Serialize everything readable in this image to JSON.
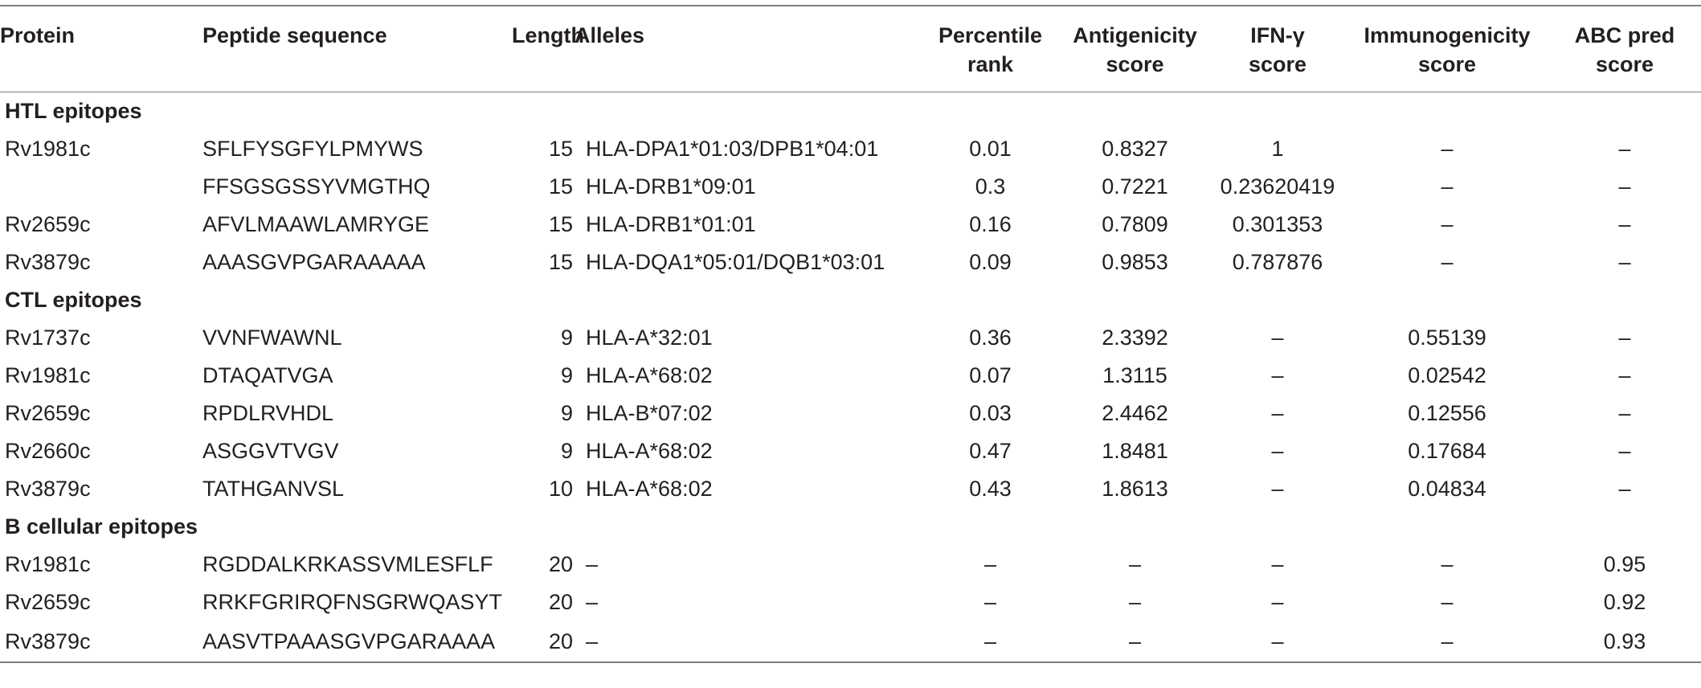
{
  "table": {
    "headers": {
      "protein": "Protein",
      "peptide": "Peptide sequence",
      "length": "Length",
      "alleles": "Alleles",
      "percentile_line1": "Percentile",
      "percentile_line2": "rank",
      "antigenicity_line1": "Antigenicity",
      "antigenicity_line2": "score",
      "ifn_line1": "IFN-γ",
      "ifn_line2": "score",
      "immunogenicity_line1": "Immunogenicity",
      "immunogenicity_line2": "score",
      "abc_line1": "ABC pred",
      "abc_line2": "score"
    },
    "sections": [
      {
        "title": "HTL epitopes",
        "rows": [
          {
            "protein": "Rv1981c",
            "peptide": "SFLFYSGFYLPMYWS",
            "length": "15",
            "alleles": "HLA-DPA1*01:03/DPB1*04:01",
            "percentile": "0.01",
            "antigenicity": "0.8327",
            "ifn": "1",
            "immunogenicity": "–",
            "abc": "–"
          },
          {
            "protein": "",
            "peptide": "FFSGSGSSYVMGTHQ",
            "length": "15",
            "alleles": "HLA-DRB1*09:01",
            "percentile": "0.3",
            "antigenicity": "0.7221",
            "ifn": "0.23620419",
            "immunogenicity": "–",
            "abc": "–"
          },
          {
            "protein": "Rv2659c",
            "peptide": "AFVLMAAWLAMRYGE",
            "length": "15",
            "alleles": "HLA-DRB1*01:01",
            "percentile": "0.16",
            "antigenicity": "0.7809",
            "ifn": "0.301353",
            "immunogenicity": "–",
            "abc": "–"
          },
          {
            "protein": "Rv3879c",
            "peptide": "AAASGVPGARAAAAA",
            "length": "15",
            "alleles": "HLA-DQA1*05:01/DQB1*03:01",
            "percentile": "0.09",
            "antigenicity": "0.9853",
            "ifn": "0.787876",
            "immunogenicity": "–",
            "abc": "–"
          }
        ]
      },
      {
        "title": "CTL epitopes",
        "rows": [
          {
            "protein": "Rv1737c",
            "peptide": "VVNFWAWNL",
            "length": "9",
            "alleles": "HLA-A*32:01",
            "percentile": "0.36",
            "antigenicity": "2.3392",
            "ifn": "–",
            "immunogenicity": "0.55139",
            "abc": "–"
          },
          {
            "protein": "Rv1981c",
            "peptide": "DTAQATVGA",
            "length": "9",
            "alleles": "HLA-A*68:02",
            "percentile": "0.07",
            "antigenicity": "1.3115",
            "ifn": "–",
            "immunogenicity": "0.02542",
            "abc": "–"
          },
          {
            "protein": "Rv2659c",
            "peptide": "RPDLRVHDL",
            "length": "9",
            "alleles": "HLA-B*07:02",
            "percentile": "0.03",
            "antigenicity": "2.4462",
            "ifn": "–",
            "immunogenicity": "0.12556",
            "abc": "–"
          },
          {
            "protein": "Rv2660c",
            "peptide": "ASGGVTVGV",
            "length": "9",
            "alleles": "HLA-A*68:02",
            "percentile": "0.47",
            "antigenicity": "1.8481",
            "ifn": "–",
            "immunogenicity": "0.17684",
            "abc": "–"
          },
          {
            "protein": "Rv3879c",
            "peptide": "TATHGANVSL",
            "length": "10",
            "alleles": "HLA-A*68:02",
            "percentile": "0.43",
            "antigenicity": "1.8613",
            "ifn": "–",
            "immunogenicity": "0.04834",
            "abc": "–"
          }
        ]
      },
      {
        "title": "B cellular epitopes",
        "rows": [
          {
            "protein": "Rv1981c",
            "peptide": "RGDDALKRKASSVMLESFLF",
            "length": "20",
            "alleles": "–",
            "percentile": "–",
            "antigenicity": "–",
            "ifn": "–",
            "immunogenicity": "–",
            "abc": "0.95"
          },
          {
            "protein": "Rv2659c",
            "peptide": "RRKFGRIRQFNSGRWQASYT",
            "length": "20",
            "alleles": "–",
            "percentile": "–",
            "antigenicity": "–",
            "ifn": "–",
            "immunogenicity": "–",
            "abc": "0.92"
          },
          {
            "protein": "Rv3879c",
            "peptide": "AASVTPAAASGVPGARAAAA",
            "length": "20",
            "alleles": "–",
            "percentile": "–",
            "antigenicity": "–",
            "ifn": "–",
            "immunogenicity": "–",
            "abc": "0.93"
          }
        ]
      }
    ]
  }
}
